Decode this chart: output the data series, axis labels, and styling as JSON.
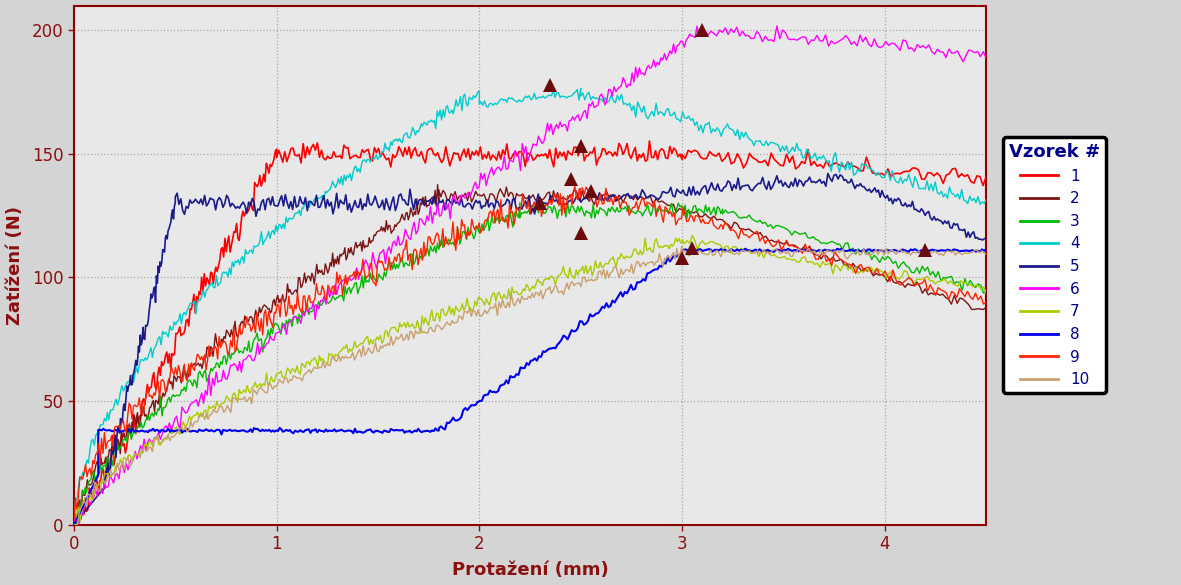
{
  "xlabel": "Protažení (mm)",
  "ylabel": "Zatížení (N)",
  "xlim": [
    0,
    4.5
  ],
  "ylim": [
    0,
    210
  ],
  "xticks": [
    0,
    1,
    2,
    3,
    4
  ],
  "yticks": [
    0,
    50,
    100,
    150,
    200
  ],
  "fig_bg": "#d4d4d4",
  "plot_bg": "#e8e8e8",
  "border_color": "#8b0000",
  "legend_title": "Vzorek #",
  "series_colors": [
    "#ff0000",
    "#7b1515",
    "#00bb00",
    "#00cccc",
    "#1a1a8b",
    "#ff00ff",
    "#aacc00",
    "#0000ee",
    "#ff2200",
    "#c8a070"
  ],
  "series_labels": [
    "1",
    "2",
    "3",
    "4",
    "5",
    "6",
    "7",
    "8",
    "9",
    "10"
  ],
  "marker_color": "#6b0a0a",
  "marker_positions": [
    [
      2.5,
      153
    ],
    [
      3.1,
      200
    ],
    [
      2.35,
      178
    ],
    [
      2.3,
      130
    ],
    [
      2.45,
      140
    ],
    [
      2.5,
      118
    ],
    [
      3.05,
      112
    ],
    [
      4.2,
      111
    ],
    [
      2.55,
      135
    ],
    [
      3.0,
      108
    ]
  ]
}
